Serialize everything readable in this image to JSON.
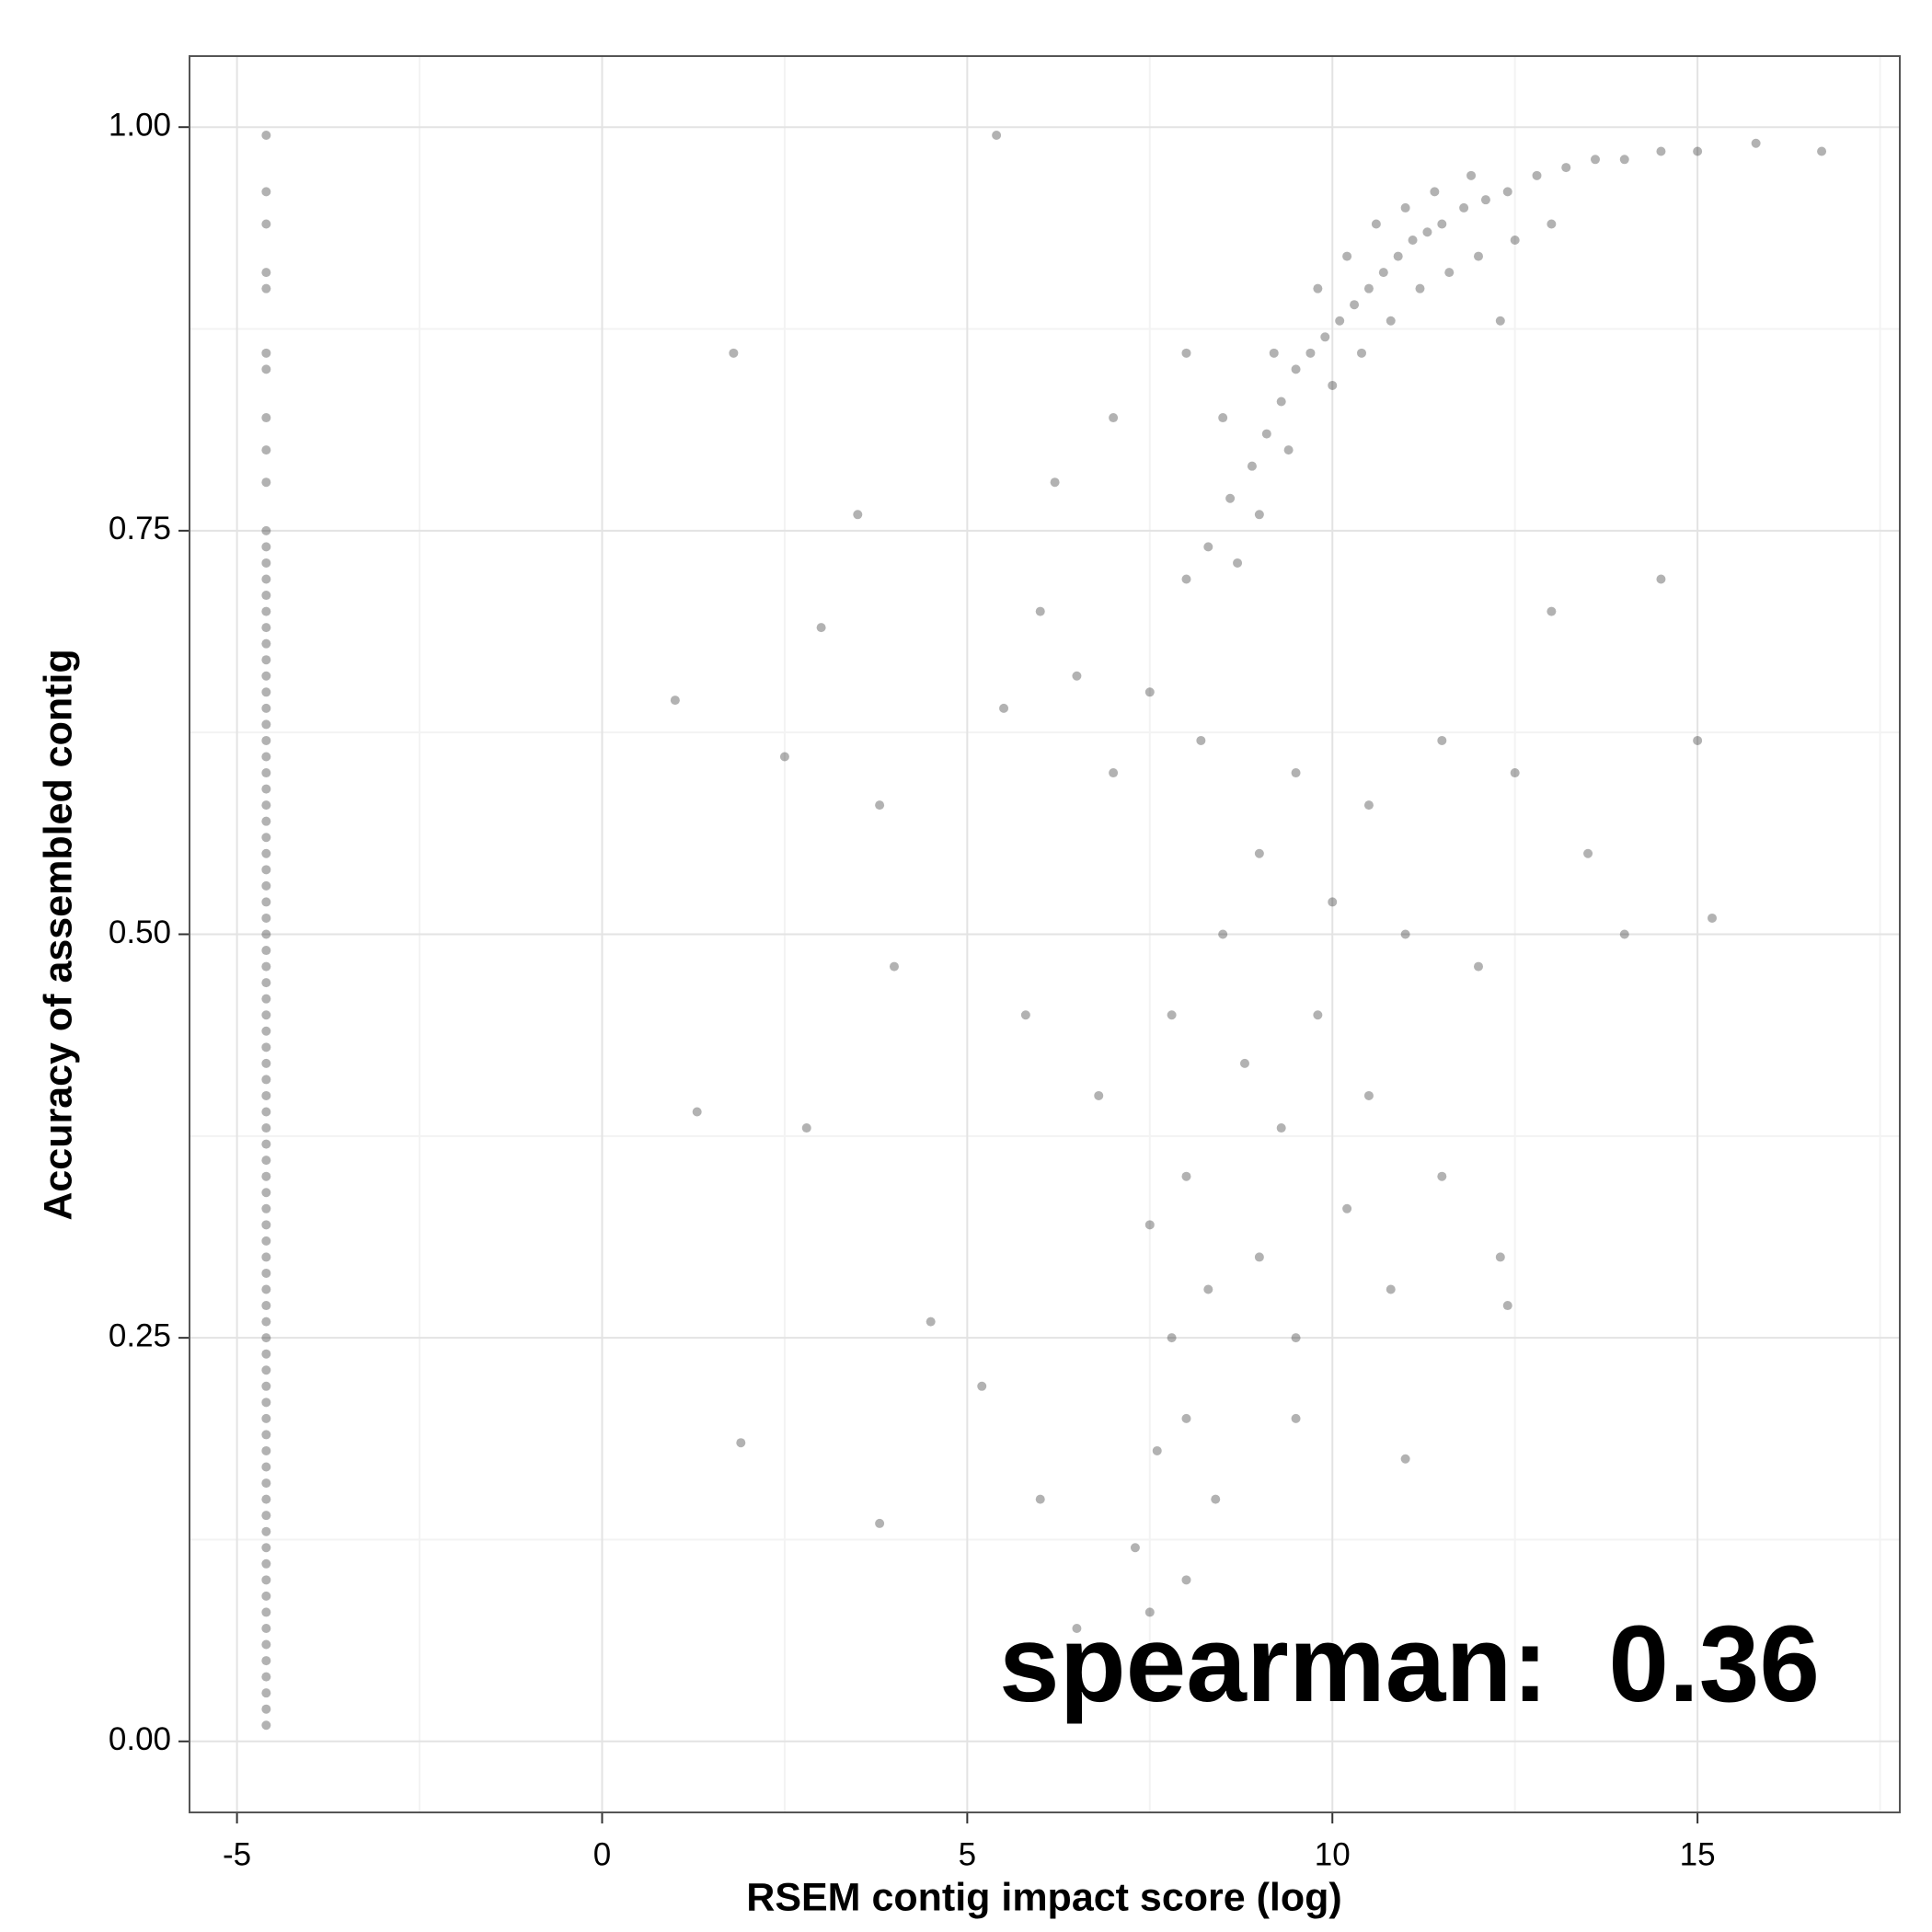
{
  "chart_data": {
    "type": "scatter",
    "xlabel": "RSEM contig impact score (log)",
    "ylabel": "Accuracy of assembled contig",
    "annotation": "spearman:  0.36",
    "xlim": [
      -5.65,
      17.77
    ],
    "ylim": [
      -0.044,
      1.044
    ],
    "xticks": [
      -5,
      0,
      5,
      10,
      15
    ],
    "yticks": [
      {
        "value": 0,
        "label": "0.00"
      },
      {
        "value": 0.25,
        "label": "0.25"
      },
      {
        "value": 0.5,
        "label": "0.50"
      },
      {
        "value": 0.75,
        "label": "0.75"
      },
      {
        "value": 1,
        "label": "1.00"
      }
    ],
    "grid": true,
    "color": "#000000",
    "alpha": 0.3,
    "x": [
      -4.6,
      -4.6,
      -4.6,
      -4.6,
      -4.6,
      -4.6,
      -4.6,
      -4.6,
      -4.6,
      -4.6,
      -4.6,
      -4.6,
      -4.6,
      -4.6,
      -4.6,
      -4.6,
      -4.6,
      -4.6,
      -4.6,
      -4.6,
      -4.6,
      -4.6,
      -4.6,
      -4.6,
      -4.6,
      -4.6,
      -4.6,
      -4.6,
      -4.6,
      -4.6,
      -4.6,
      -4.6,
      -4.6,
      -4.6,
      -4.6,
      -4.6,
      -4.6,
      -4.6,
      -4.6,
      -4.6,
      -4.6,
      -4.6,
      -4.6,
      -4.6,
      -4.6,
      -4.6,
      -4.6,
      -4.6,
      -4.6,
      -4.6,
      -4.6,
      -4.6,
      -4.6,
      -4.6,
      -4.6,
      -4.6,
      -4.6,
      -4.6,
      -4.6,
      -4.6,
      -4.6,
      -4.6,
      -4.6,
      -4.6,
      -4.6,
      -4.6,
      -4.6,
      -4.6,
      -4.6,
      -4.6,
      -4.6,
      -4.6,
      -4.6,
      -4.6,
      -4.6,
      -4.6,
      -4.6,
      -4.6,
      -4.6,
      -4.6,
      -4.6,
      -4.6,
      -4.6,
      -4.6,
      -4.6,
      8.0,
      8.3,
      8.6,
      8.9,
      9.1,
      9.3,
      9.5,
      9.7,
      9.9,
      10.1,
      10.3,
      10.5,
      10.7,
      10.9,
      11.1,
      11.3,
      11.5,
      11.8,
      12.1,
      12.4,
      12.8,
      13.2,
      13.6,
      14.0,
      14.5,
      15.0,
      15.8,
      16.7,
      9.8,
      10.2,
      10.6,
      11.0,
      11.4,
      10.0,
      10.4,
      10.8,
      11.2,
      11.6,
      12.0,
      12.5,
      9.0,
      9.4,
      8.7,
      9.2,
      8.5,
      12.3,
      13.0,
      11.9,
      7.5,
      6.5,
      5.5,
      6.0,
      7.0,
      8.2,
      9.5,
      10.5,
      11.5,
      12.5,
      9.0,
      10.0,
      8.5,
      11.0,
      12.0,
      9.8,
      8.8,
      7.8,
      10.5,
      9.3,
      8.0,
      7.5,
      9.0,
      10.2,
      11.5,
      8.3,
      7.8,
      9.5,
      8.0,
      7.6,
      8.4,
      7.3,
      8.0,
      7.5,
      6.5,
      9.5,
      10.8,
      12.3,
      6.8,
      5.8,
      13.5,
      14.0,
      13.0,
      14.5,
      15.0,
      15.2,
      6.2,
      7.0,
      8.0,
      1.0,
      1.8,
      2.5,
      3.0,
      3.5,
      3.8,
      4.0,
      1.3,
      2.8,
      1.9,
      3.8,
      4.5,
      5.4,
      5.2,
      6.0,
      11.0,
      12.4
    ],
    "y": [
      0.01,
      0.02,
      0.03,
      0.04,
      0.05,
      0.06,
      0.07,
      0.08,
      0.09,
      0.1,
      0.11,
      0.12,
      0.13,
      0.14,
      0.15,
      0.16,
      0.17,
      0.18,
      0.19,
      0.2,
      0.21,
      0.22,
      0.23,
      0.24,
      0.25,
      0.26,
      0.27,
      0.28,
      0.29,
      0.3,
      0.31,
      0.32,
      0.33,
      0.34,
      0.35,
      0.36,
      0.37,
      0.38,
      0.39,
      0.4,
      0.41,
      0.42,
      0.43,
      0.44,
      0.45,
      0.46,
      0.47,
      0.48,
      0.49,
      0.5,
      0.51,
      0.52,
      0.53,
      0.54,
      0.55,
      0.56,
      0.57,
      0.58,
      0.59,
      0.6,
      0.61,
      0.62,
      0.63,
      0.64,
      0.65,
      0.66,
      0.67,
      0.68,
      0.69,
      0.7,
      0.71,
      0.72,
      0.73,
      0.74,
      0.75,
      0.78,
      0.8,
      0.82,
      0.85,
      0.86,
      0.9,
      0.91,
      0.94,
      0.96,
      0.995,
      0.72,
      0.74,
      0.77,
      0.79,
      0.81,
      0.83,
      0.85,
      0.86,
      0.87,
      0.88,
      0.89,
      0.9,
      0.91,
      0.92,
      0.93,
      0.935,
      0.94,
      0.95,
      0.955,
      0.96,
      0.97,
      0.975,
      0.98,
      0.98,
      0.985,
      0.985,
      0.99,
      0.985,
      0.9,
      0.92,
      0.94,
      0.95,
      0.96,
      0.84,
      0.86,
      0.88,
      0.9,
      0.91,
      0.92,
      0.93,
      0.76,
      0.8,
      0.73,
      0.86,
      0.82,
      0.88,
      0.94,
      0.97,
      0.65,
      0.66,
      0.64,
      0.7,
      0.6,
      0.62,
      0.6,
      0.58,
      0.62,
      0.6,
      0.55,
      0.52,
      0.5,
      0.5,
      0.48,
      0.45,
      0.42,
      0.45,
      0.4,
      0.38,
      0.35,
      0.32,
      0.3,
      0.33,
      0.35,
      0.28,
      0.25,
      0.25,
      0.2,
      0.18,
      0.15,
      0.12,
      0.1,
      0.08,
      0.07,
      0.2,
      0.28,
      0.3,
      0.4,
      0.45,
      0.55,
      0.5,
      0.7,
      0.72,
      0.62,
      0.51,
      0.78,
      0.82,
      0.86,
      0.645,
      0.86,
      0.61,
      0.69,
      0.76,
      0.58,
      0.48,
      0.39,
      0.38,
      0.185,
      0.135,
      0.26,
      0.995,
      0.22,
      0.15,
      0.175,
      0.27
    ]
  }
}
